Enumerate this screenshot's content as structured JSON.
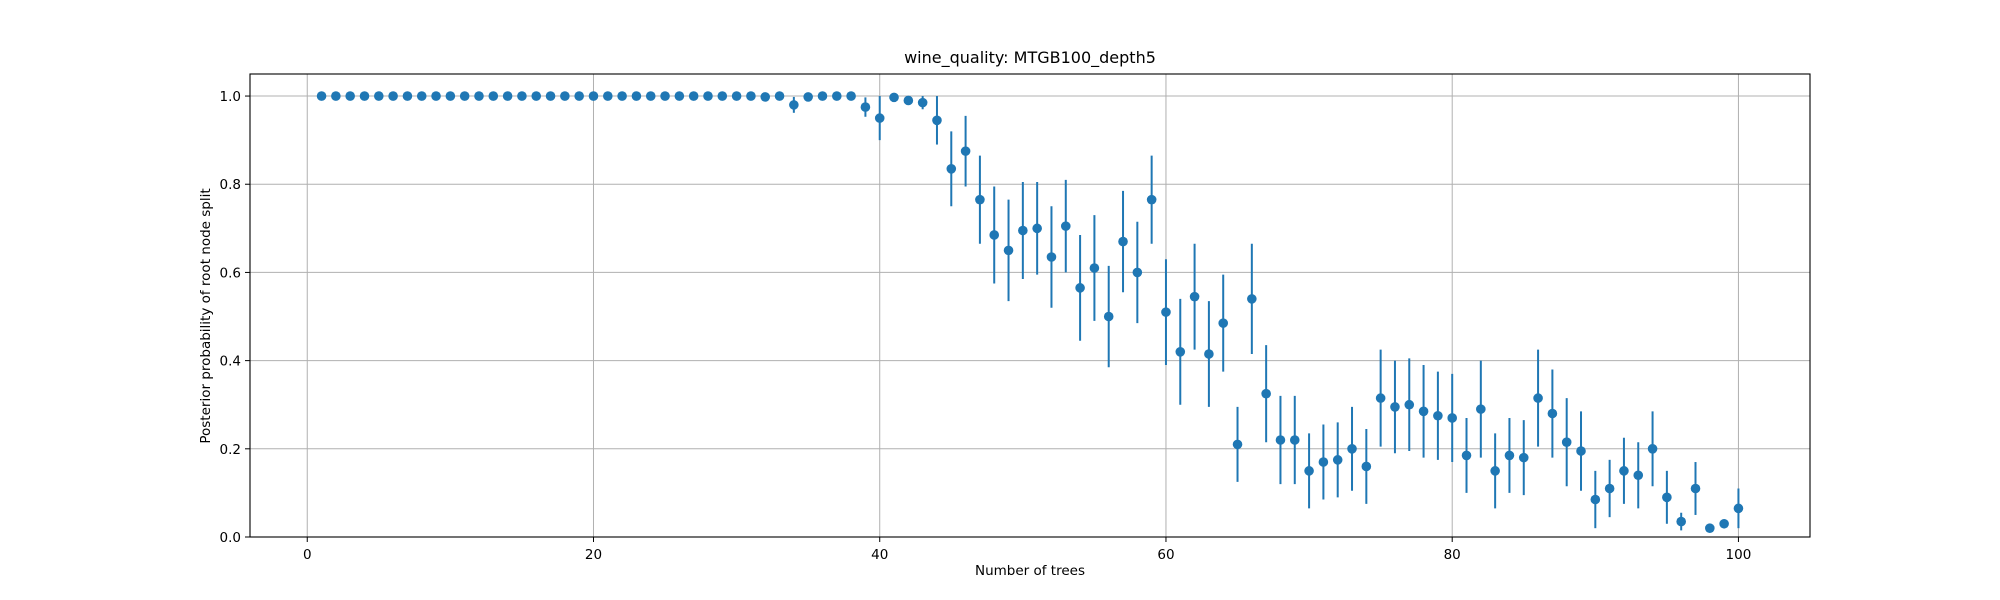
{
  "chart_data": {
    "type": "scatter",
    "title": "wine_quality: MTGB100_depth5",
    "xlabel": "Number of trees",
    "ylabel": "Posterior probability of root node split",
    "xlim": [
      -4,
      105
    ],
    "ylim": [
      0.0,
      1.05
    ],
    "xticks": [
      0,
      20,
      40,
      60,
      80,
      100
    ],
    "xtick_labels": [
      "0",
      "20",
      "40",
      "60",
      "80",
      "100"
    ],
    "yticks": [
      0.0,
      0.2,
      0.4,
      0.6,
      0.8,
      1.0
    ],
    "ytick_labels": [
      "0.0",
      "0.2",
      "0.4",
      "0.6",
      "0.8",
      "1.0"
    ],
    "grid": true,
    "color": "#1f77b4",
    "series": [
      {
        "name": "posterior",
        "x": [
          1,
          2,
          3,
          4,
          5,
          6,
          7,
          8,
          9,
          10,
          11,
          12,
          13,
          14,
          15,
          16,
          17,
          18,
          19,
          20,
          21,
          22,
          23,
          24,
          25,
          26,
          27,
          28,
          29,
          30,
          31,
          32,
          33,
          34,
          35,
          36,
          37,
          38,
          39,
          40,
          41,
          42,
          43,
          44,
          45,
          46,
          47,
          48,
          49,
          50,
          51,
          52,
          53,
          54,
          55,
          56,
          57,
          58,
          59,
          60,
          61,
          62,
          63,
          64,
          65,
          66,
          67,
          68,
          69,
          70,
          71,
          72,
          73,
          74,
          75,
          76,
          77,
          78,
          79,
          80,
          81,
          82,
          83,
          84,
          85,
          86,
          87,
          88,
          89,
          90,
          91,
          92,
          93,
          94,
          95,
          96,
          97,
          98,
          99,
          100
        ],
        "y": [
          1.0,
          1.0,
          1.0,
          1.0,
          1.0,
          1.0,
          1.0,
          1.0,
          1.0,
          1.0,
          1.0,
          1.0,
          1.0,
          1.0,
          1.0,
          1.0,
          1.0,
          1.0,
          1.0,
          1.0,
          1.0,
          1.0,
          1.0,
          1.0,
          1.0,
          1.0,
          1.0,
          1.0,
          1.0,
          1.0,
          1.0,
          0.998,
          1.0,
          0.98,
          0.998,
          1.0,
          1.0,
          1.0,
          0.975,
          0.95,
          0.997,
          0.99,
          0.985,
          0.945,
          0.835,
          0.875,
          0.765,
          0.685,
          0.65,
          0.695,
          0.7,
          0.635,
          0.705,
          0.565,
          0.61,
          0.5,
          0.67,
          0.6,
          0.765,
          0.51,
          0.42,
          0.545,
          0.415,
          0.485,
          0.21,
          0.54,
          0.325,
          0.22,
          0.22,
          0.15,
          0.17,
          0.175,
          0.2,
          0.16,
          0.315,
          0.295,
          0.3,
          0.285,
          0.275,
          0.27,
          0.185,
          0.29,
          0.15,
          0.185,
          0.18,
          0.315,
          0.28,
          0.215,
          0.195,
          0.085,
          0.11,
          0.15,
          0.14,
          0.2,
          0.09,
          0.035,
          0.11,
          0.02,
          0.03,
          0.065
        ],
        "err": [
          0,
          0,
          0,
          0,
          0,
          0,
          0,
          0,
          0,
          0,
          0,
          0,
          0,
          0,
          0,
          0,
          0,
          0,
          0,
          0,
          0,
          0,
          0,
          0,
          0,
          0,
          0,
          0,
          0,
          0,
          0,
          0.005,
          0,
          0.018,
          0.005,
          0,
          0,
          0,
          0.022,
          0.05,
          0.008,
          0.01,
          0.015,
          0.055,
          0.085,
          0.08,
          0.1,
          0.11,
          0.115,
          0.11,
          0.105,
          0.115,
          0.105,
          0.12,
          0.12,
          0.115,
          0.115,
          0.115,
          0.1,
          0.12,
          0.12,
          0.12,
          0.12,
          0.11,
          0.085,
          0.125,
          0.11,
          0.1,
          0.1,
          0.085,
          0.085,
          0.085,
          0.095,
          0.085,
          0.11,
          0.105,
          0.105,
          0.105,
          0.1,
          0.1,
          0.085,
          0.11,
          0.085,
          0.085,
          0.085,
          0.11,
          0.1,
          0.1,
          0.09,
          0.065,
          0.065,
          0.075,
          0.075,
          0.085,
          0.06,
          0.02,
          0.06,
          0.01,
          0.01,
          0.045
        ]
      }
    ]
  }
}
